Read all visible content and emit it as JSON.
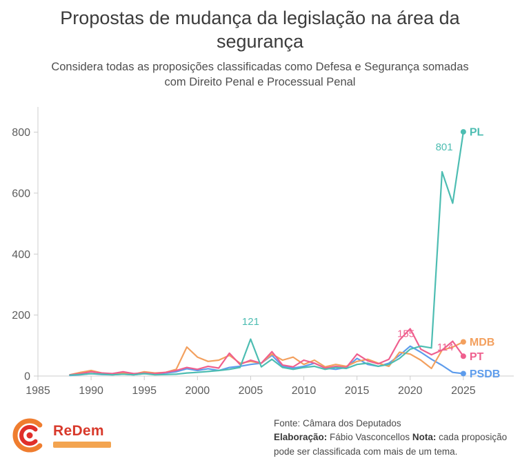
{
  "header": {
    "title": "Propostas de mudança da legislação na área da segurança",
    "subtitle": "Considera todas as proposições classificadas como Defesa e Segurança somadas com Direito Penal e Processual Penal"
  },
  "chart_data": {
    "type": "line",
    "title": "Propostas de mudança da legislação na área da segurança",
    "xlabel": "",
    "ylabel": "",
    "grid": false,
    "legend_position": "right-end-labels",
    "xlim": [
      1985,
      2026.5
    ],
    "ylim": [
      0,
      860
    ],
    "x_ticks": [
      1985,
      1990,
      1995,
      2000,
      2005,
      2010,
      2015,
      2020,
      2025
    ],
    "y_ticks": [
      0,
      200,
      400,
      600,
      800
    ],
    "x": [
      1988,
      1989,
      1990,
      1991,
      1992,
      1993,
      1994,
      1995,
      1996,
      1997,
      1998,
      1999,
      2000,
      2001,
      2002,
      2003,
      2004,
      2005,
      2006,
      2007,
      2008,
      2009,
      2010,
      2011,
      2012,
      2013,
      2014,
      2015,
      2016,
      2017,
      2018,
      2019,
      2020,
      2021,
      2022,
      2023,
      2024,
      2025
    ],
    "series": [
      {
        "name": "PL",
        "color": "#4dbdb2",
        "values": [
          3,
          5,
          8,
          6,
          4,
          6,
          4,
          8,
          4,
          5,
          6,
          10,
          12,
          15,
          18,
          22,
          28,
          121,
          30,
          55,
          28,
          22,
          28,
          32,
          22,
          28,
          25,
          38,
          42,
          32,
          38,
          58,
          88,
          98,
          92,
          670,
          567,
          801
        ]
      },
      {
        "name": "MDB",
        "color": "#f3a05e",
        "values": [
          4,
          12,
          18,
          10,
          6,
          10,
          6,
          14,
          10,
          12,
          22,
          95,
          62,
          48,
          52,
          68,
          42,
          48,
          42,
          72,
          52,
          62,
          38,
          52,
          30,
          38,
          32,
          48,
          55,
          42,
          32,
          78,
          72,
          52,
          25,
          85,
          95,
          112
        ]
      },
      {
        "name": "PT",
        "color": "#ef5f8e",
        "values": [
          4,
          8,
          14,
          10,
          8,
          14,
          8,
          10,
          8,
          12,
          18,
          28,
          22,
          32,
          26,
          75,
          38,
          52,
          42,
          80,
          36,
          30,
          52,
          42,
          26,
          32,
          28,
          72,
          50,
          40,
          55,
          118,
          155,
          88,
          70,
          85,
          114,
          65
        ]
      },
      {
        "name": "PSDB",
        "color": "#5d9cec",
        "values": [
          2,
          4,
          8,
          5,
          4,
          6,
          4,
          8,
          6,
          10,
          14,
          24,
          18,
          24,
          18,
          28,
          32,
          38,
          42,
          68,
          32,
          26,
          32,
          42,
          26,
          22,
          28,
          58,
          38,
          32,
          42,
          68,
          98,
          78,
          55,
          35,
          12,
          8
        ]
      }
    ],
    "annotations": [
      {
        "text": "801",
        "x": 2023.2,
        "y": 740,
        "color": "#4dbdb2"
      },
      {
        "text": "121",
        "x": 2005,
        "y": 168,
        "color": "#4dbdb2"
      },
      {
        "text": "155",
        "x": 2019.6,
        "y": 128,
        "color": "#ef5f8e"
      },
      {
        "text": "114",
        "x": 2023.3,
        "y": 84,
        "color": "#ef5f8e"
      }
    ]
  },
  "footer": {
    "logo_text": "ReDem",
    "source": "Fonte: Câmara dos Deputados",
    "elaboration_label": "Elaboração:",
    "elaboration_value": " Fábio Vasconcellos ",
    "note_label": "Nota:",
    "note_value": " cada proposição pode ser classificada com mais de um tema."
  }
}
